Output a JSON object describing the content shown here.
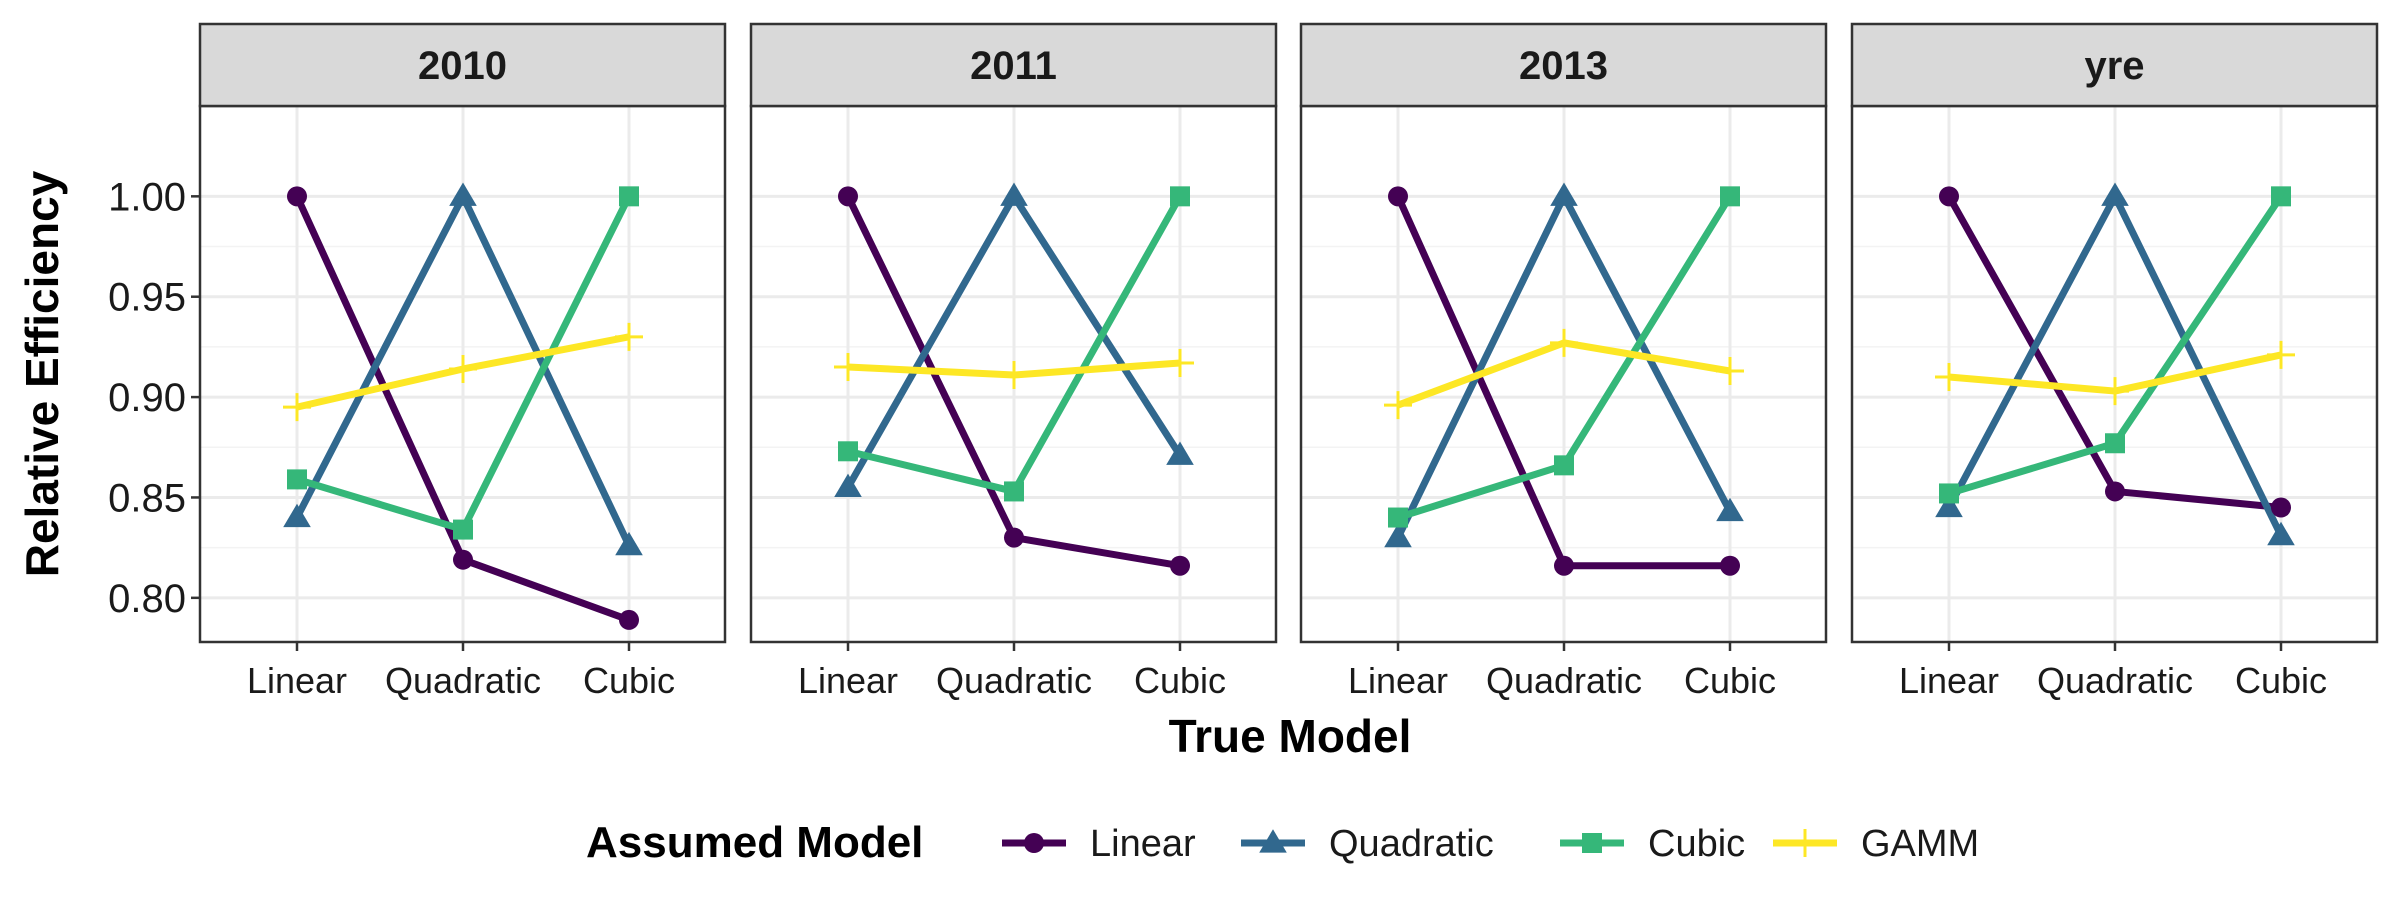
{
  "chart_data": {
    "type": "line",
    "xlabel": "True Model",
    "ylabel": "Relative Efficiency",
    "ylim": [
      0.778,
      1.045
    ],
    "yticks": [
      "0.80",
      "0.85",
      "0.90",
      "0.95",
      "1.00"
    ],
    "ytick_values": [
      0.8,
      0.85,
      0.9,
      0.95,
      1.0
    ],
    "categories": [
      "Linear",
      "Quadratic",
      "Cubic"
    ],
    "grid": true,
    "legend": {
      "title": "Assumed Model",
      "position": "bottom"
    },
    "series_style": [
      {
        "name": "Linear",
        "color": "#440154",
        "marker": "circle"
      },
      {
        "name": "Quadratic",
        "color": "#31688E",
        "marker": "triangle"
      },
      {
        "name": "Cubic",
        "color": "#35B779",
        "marker": "square"
      },
      {
        "name": "GAMM",
        "color": "#FDE725",
        "marker": "plus"
      }
    ],
    "panels": [
      {
        "title": "2010",
        "series": [
          {
            "name": "Linear",
            "values": [
              1.0,
              0.819,
              0.789
            ]
          },
          {
            "name": "Quadratic",
            "values": [
              0.84,
              1.0,
              0.826
            ]
          },
          {
            "name": "Cubic",
            "values": [
              0.859,
              0.834,
              1.0
            ]
          },
          {
            "name": "GAMM",
            "values": [
              0.895,
              0.914,
              0.93
            ]
          }
        ]
      },
      {
        "title": "2011",
        "series": [
          {
            "name": "Linear",
            "values": [
              1.0,
              0.83,
              0.816
            ]
          },
          {
            "name": "Quadratic",
            "values": [
              0.855,
              1.0,
              0.871
            ]
          },
          {
            "name": "Cubic",
            "values": [
              0.873,
              0.853,
              1.0
            ]
          },
          {
            "name": "GAMM",
            "values": [
              0.915,
              0.911,
              0.917
            ]
          }
        ]
      },
      {
        "title": "2013",
        "series": [
          {
            "name": "Linear",
            "values": [
              1.0,
              0.816,
              0.816
            ]
          },
          {
            "name": "Quadratic",
            "values": [
              0.83,
              1.0,
              0.843
            ]
          },
          {
            "name": "Cubic",
            "values": [
              0.84,
              0.866,
              1.0
            ]
          },
          {
            "name": "GAMM",
            "values": [
              0.896,
              0.927,
              0.913
            ]
          }
        ]
      },
      {
        "title": "yre",
        "series": [
          {
            "name": "Linear",
            "values": [
              1.0,
              0.853,
              0.845
            ]
          },
          {
            "name": "Quadratic",
            "values": [
              0.845,
              1.0,
              0.831
            ]
          },
          {
            "name": "Cubic",
            "values": [
              0.852,
              0.877,
              1.0
            ]
          },
          {
            "name": "GAMM",
            "values": [
              0.91,
              0.903,
              0.921
            ]
          }
        ]
      }
    ]
  }
}
